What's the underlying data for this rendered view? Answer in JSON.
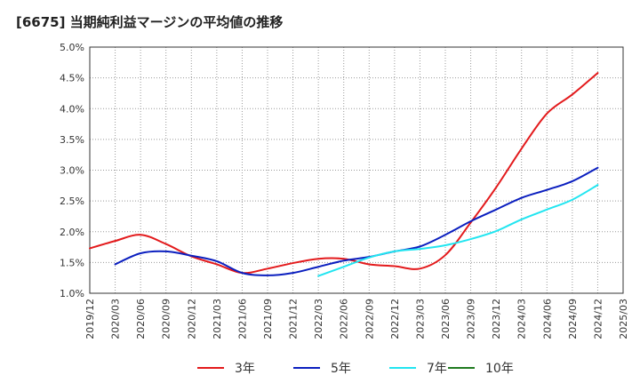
{
  "title": "[6675]  当期純利益マージンの平均値の推移",
  "chart_data": {
    "type": "line",
    "xlabel": "",
    "ylabel": "",
    "x": [
      "2019/12",
      "2020/03",
      "2020/06",
      "2020/09",
      "2020/12",
      "2021/03",
      "2021/06",
      "2021/09",
      "2021/12",
      "2022/03",
      "2022/06",
      "2022/09",
      "2022/12",
      "2023/03",
      "2023/06",
      "2023/09",
      "2023/12",
      "2024/03",
      "2024/06",
      "2024/09",
      "2024/12",
      "2025/03"
    ],
    "ylim": [
      1.0,
      5.0
    ],
    "y_ticks": [
      "1.0%",
      "1.5%",
      "2.0%",
      "2.5%",
      "3.0%",
      "3.5%",
      "4.0%",
      "4.5%",
      "5.0%"
    ],
    "grid": true,
    "legend_position": "bottom",
    "series": [
      {
        "name": "3年",
        "color": "#e31a1c",
        "values": [
          1.73,
          1.85,
          1.95,
          1.8,
          1.6,
          1.47,
          1.33,
          1.4,
          1.49,
          1.56,
          1.56,
          1.47,
          1.44,
          1.4,
          1.62,
          2.15,
          2.72,
          3.35,
          3.92,
          4.23,
          4.58,
          null
        ]
      },
      {
        "name": "5年",
        "color": "#0b1fbf",
        "values": [
          null,
          1.47,
          1.65,
          1.68,
          1.61,
          1.52,
          1.33,
          1.29,
          1.33,
          1.43,
          1.53,
          1.59,
          1.68,
          1.76,
          1.95,
          2.17,
          2.36,
          2.55,
          2.68,
          2.82,
          3.04,
          null
        ]
      },
      {
        "name": "7年",
        "color": "#22e5f0",
        "values": [
          null,
          null,
          null,
          null,
          null,
          null,
          null,
          null,
          null,
          1.28,
          1.43,
          1.58,
          1.68,
          1.72,
          1.78,
          1.88,
          2.01,
          2.2,
          2.36,
          2.52,
          2.76,
          null
        ]
      },
      {
        "name": "10年",
        "color": "#1f7a1f",
        "values": [
          null,
          null,
          null,
          null,
          null,
          null,
          null,
          null,
          null,
          null,
          null,
          null,
          null,
          null,
          null,
          null,
          null,
          null,
          null,
          null,
          null,
          null
        ]
      }
    ]
  }
}
